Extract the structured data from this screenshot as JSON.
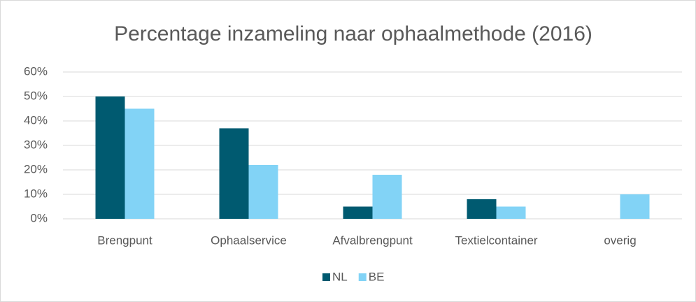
{
  "chart_data": {
    "type": "bar",
    "title": "Percentage inzameling naar ophaalmethode (2016)",
    "categories": [
      "Brengpunt",
      "Ophaalservice",
      "Afvalbrengpunt",
      "Textielcontainer",
      "overig"
    ],
    "series": [
      {
        "name": "NL",
        "color": "#005a70",
        "values": [
          50,
          37,
          5,
          8,
          null
        ]
      },
      {
        "name": "BE",
        "color": "#82d3f6",
        "values": [
          45,
          22,
          18,
          5,
          10
        ]
      }
    ],
    "ylim": [
      0,
      60
    ],
    "yticks": [
      {
        "value": 0,
        "label": "0%"
      },
      {
        "value": 10,
        "label": "10%"
      },
      {
        "value": 20,
        "label": "20%"
      },
      {
        "value": 30,
        "label": "30%"
      },
      {
        "value": 40,
        "label": "40%"
      },
      {
        "value": 50,
        "label": "50%"
      },
      {
        "value": 60,
        "label": "60%"
      }
    ],
    "grid": true,
    "legend": "bottom"
  }
}
